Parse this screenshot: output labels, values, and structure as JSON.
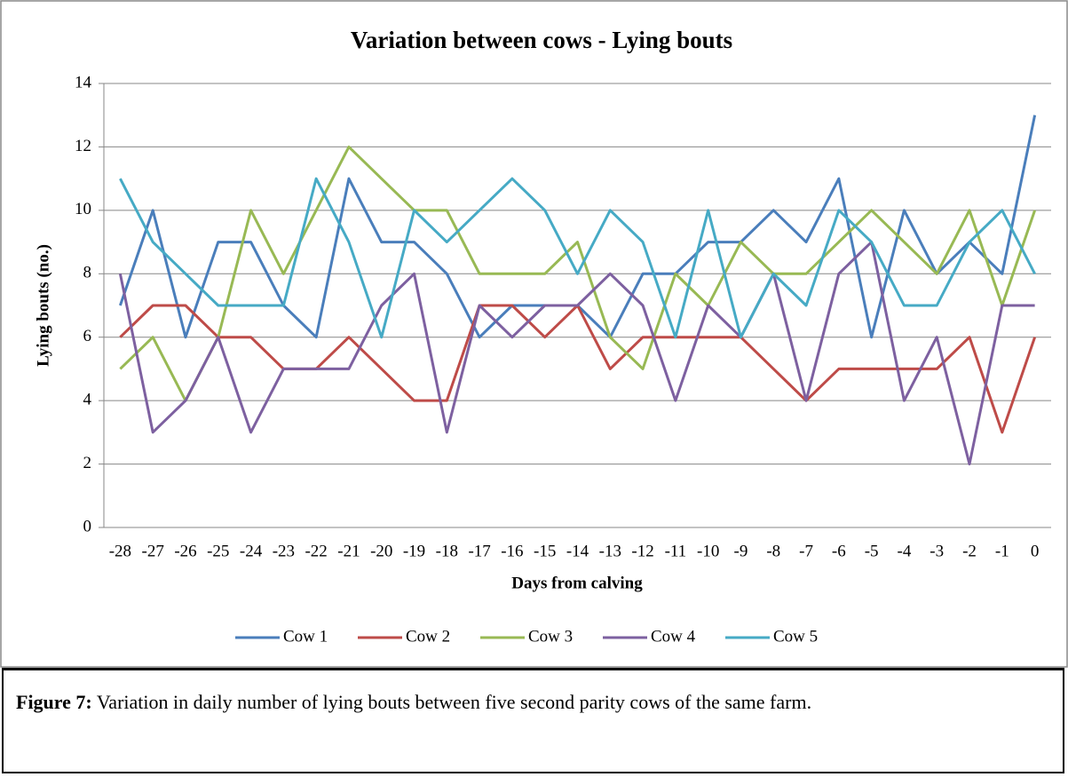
{
  "chart_data": {
    "type": "line",
    "title": "Variation  between cows - Lying bouts",
    "x_label": "Days from calving",
    "y_label": "Lying bouts (no.)",
    "x": [
      -28,
      -27,
      -26,
      -25,
      -24,
      -23,
      -22,
      -21,
      -20,
      -19,
      -18,
      -17,
      -16,
      -15,
      -14,
      -13,
      -12,
      -11,
      -10,
      -9,
      -8,
      -7,
      -6,
      -5,
      -4,
      -3,
      -2,
      -1,
      0
    ],
    "ylim": [
      0,
      14
    ],
    "yticks": [
      0,
      2,
      4,
      6,
      8,
      10,
      12,
      14
    ],
    "grid": true,
    "legend": "bottom",
    "series": [
      {
        "name": "Cow 1",
        "color": "#4a7ebb",
        "values": [
          7,
          10,
          6,
          9,
          9,
          7,
          6,
          11,
          9,
          9,
          8,
          6,
          7,
          7,
          7,
          6,
          8,
          8,
          9,
          9,
          10,
          9,
          11,
          6,
          10,
          8,
          9,
          8,
          13
        ]
      },
      {
        "name": "Cow 2",
        "color": "#be4b48",
        "values": [
          6,
          7,
          7,
          6,
          6,
          5,
          5,
          6,
          5,
          4,
          4,
          7,
          7,
          6,
          7,
          5,
          6,
          6,
          6,
          6,
          5,
          4,
          5,
          5,
          5,
          5,
          6,
          3,
          6
        ]
      },
      {
        "name": "Cow 3",
        "color": "#98b954",
        "values": [
          5,
          6,
          4,
          6,
          10,
          8,
          10,
          12,
          11,
          10,
          10,
          8,
          8,
          8,
          9,
          6,
          5,
          8,
          7,
          9,
          8,
          8,
          9,
          10,
          9,
          8,
          10,
          7,
          10
        ]
      },
      {
        "name": "Cow 4",
        "color": "#7d60a0",
        "values": [
          8,
          3,
          4,
          6,
          3,
          5,
          5,
          5,
          7,
          8,
          3,
          7,
          6,
          7,
          7,
          8,
          7,
          4,
          7,
          6,
          8,
          4,
          8,
          9,
          4,
          6,
          2,
          7,
          7
        ]
      },
      {
        "name": "Cow 5",
        "color": "#46aac5",
        "values": [
          11,
          9,
          8,
          7,
          7,
          7,
          11,
          9,
          6,
          10,
          9,
          10,
          11,
          10,
          8,
          10,
          9,
          6,
          10,
          6,
          8,
          7,
          10,
          9,
          7,
          7,
          9,
          10,
          8
        ]
      }
    ]
  },
  "caption": {
    "label": "Figure 7:",
    "text": " Variation in daily number of lying bouts between five second parity cows of the same farm."
  }
}
